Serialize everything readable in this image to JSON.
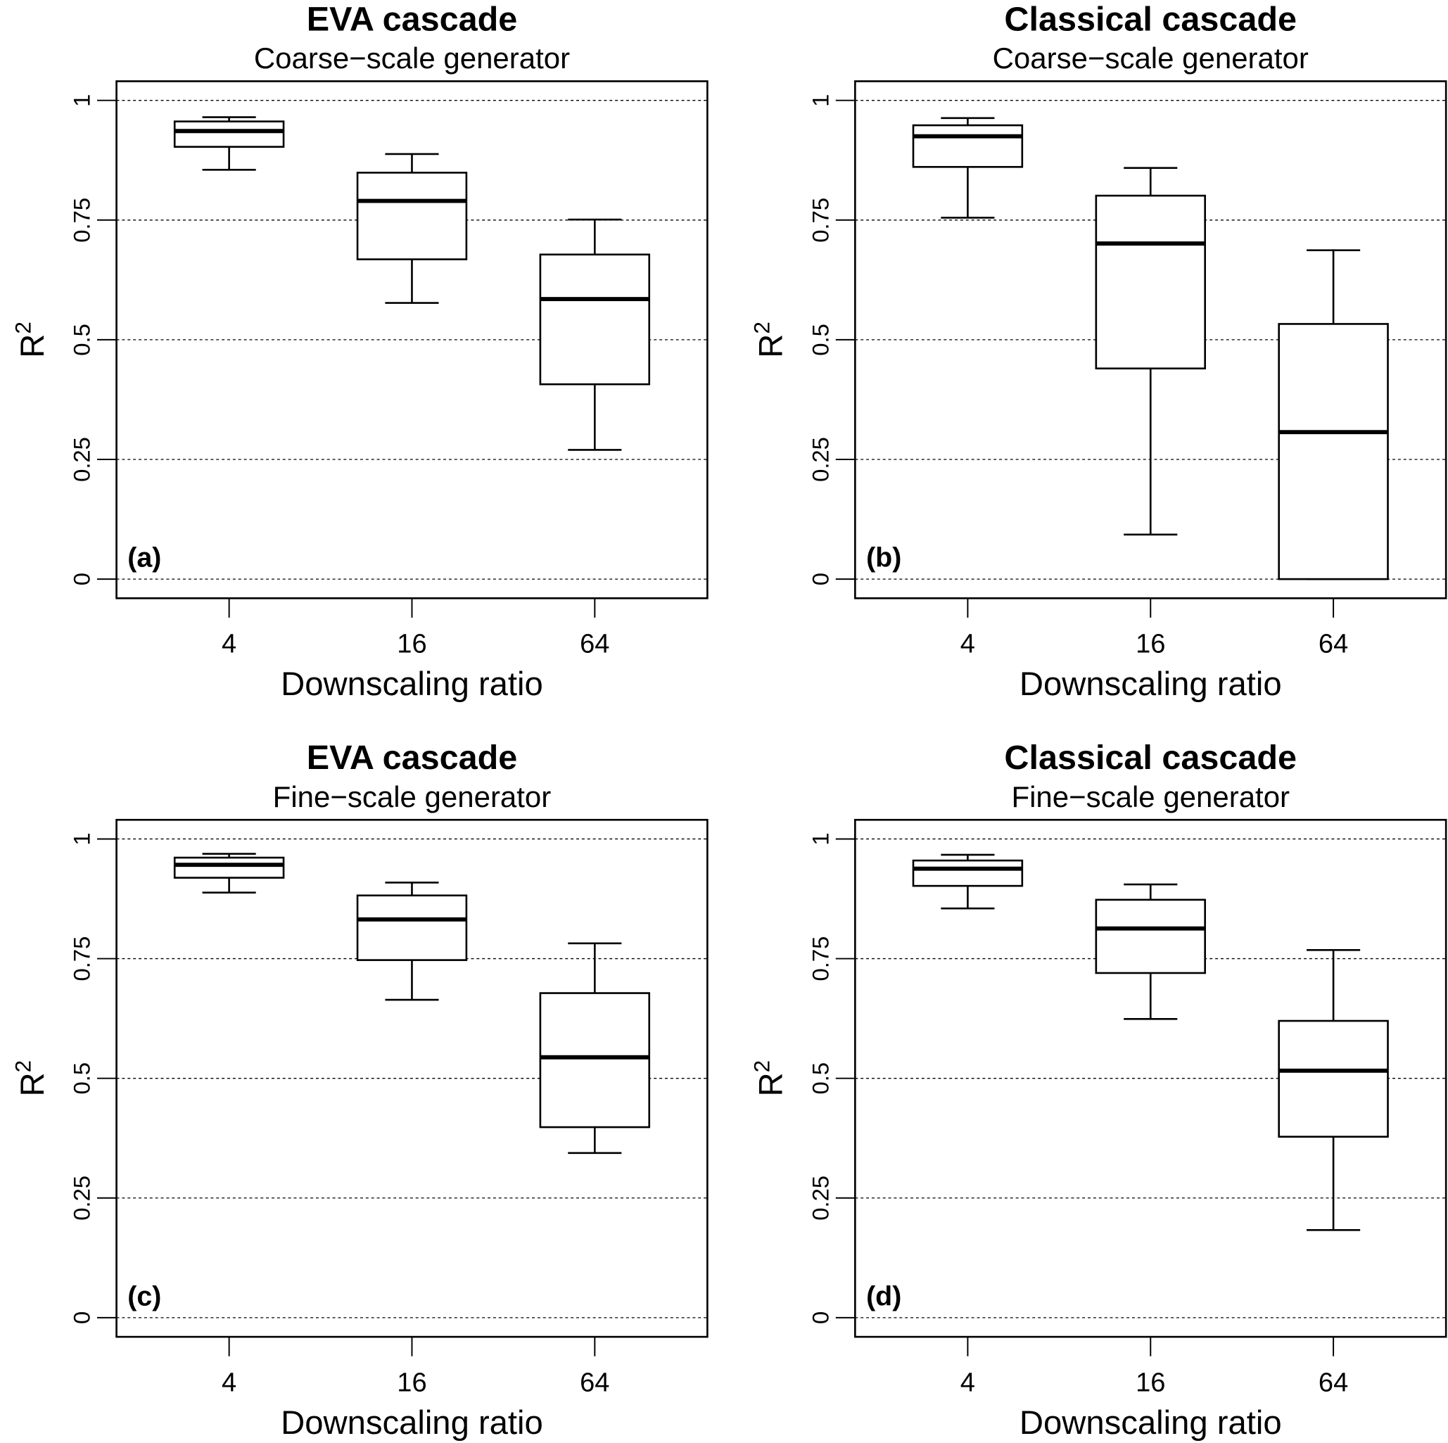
{
  "chart_data": [
    {
      "type": "box",
      "title": "EVA cascade",
      "subtitle": "Coarse−scale generator",
      "panel_label": "(a)",
      "xlabel": "Downscaling ratio",
      "ylabel": "R",
      "ylabel_superscript": "2",
      "categories": [
        "4",
        "16",
        "64"
      ],
      "yticks": [
        "0",
        "0.25",
        "0.5",
        "0.75",
        "1"
      ],
      "ylim": [
        0,
        1
      ],
      "grid": "horizontal dashed",
      "boxes": [
        {
          "whisker_low": 0.855,
          "q1": 0.903,
          "median": 0.936,
          "q3": 0.956,
          "whisker_high": 0.965
        },
        {
          "whisker_low": 0.577,
          "q1": 0.668,
          "median": 0.79,
          "q3": 0.849,
          "whisker_high": 0.888
        },
        {
          "whisker_low": 0.27,
          "q1": 0.407,
          "median": 0.585,
          "q3": 0.678,
          "whisker_high": 0.751
        }
      ]
    },
    {
      "type": "box",
      "title": "Classical cascade",
      "subtitle": "Coarse−scale generator",
      "panel_label": "(b)",
      "xlabel": "Downscaling ratio",
      "ylabel": "R",
      "ylabel_superscript": "2",
      "categories": [
        "4",
        "16",
        "64"
      ],
      "yticks": [
        "0",
        "0.25",
        "0.5",
        "0.75",
        "1"
      ],
      "ylim": [
        0,
        1
      ],
      "grid": "horizontal dashed",
      "boxes": [
        {
          "whisker_low": 0.755,
          "q1": 0.861,
          "median": 0.925,
          "q3": 0.948,
          "whisker_high": 0.963
        },
        {
          "whisker_low": 0.093,
          "q1": 0.44,
          "median": 0.701,
          "q3": 0.801,
          "whisker_high": 0.859
        },
        {
          "whisker_low": 0.0,
          "q1": 0.0,
          "median": 0.307,
          "q3": 0.533,
          "whisker_high": 0.687
        }
      ]
    },
    {
      "type": "box",
      "title": "EVA cascade",
      "subtitle": "Fine−scale generator",
      "panel_label": "(c)",
      "xlabel": "Downscaling ratio",
      "ylabel": "R",
      "ylabel_superscript": "2",
      "categories": [
        "4",
        "16",
        "64"
      ],
      "yticks": [
        "0",
        "0.25",
        "0.5",
        "0.75",
        "1"
      ],
      "ylim": [
        0,
        1
      ],
      "grid": "horizontal dashed",
      "boxes": [
        {
          "whisker_low": 0.888,
          "q1": 0.919,
          "median": 0.946,
          "q3": 0.961,
          "whisker_high": 0.969
        },
        {
          "whisker_low": 0.664,
          "q1": 0.747,
          "median": 0.832,
          "q3": 0.882,
          "whisker_high": 0.909
        },
        {
          "whisker_low": 0.344,
          "q1": 0.398,
          "median": 0.544,
          "q3": 0.678,
          "whisker_high": 0.782
        }
      ]
    },
    {
      "type": "box",
      "title": "Classical cascade",
      "subtitle": "Fine−scale generator",
      "panel_label": "(d)",
      "xlabel": "Downscaling ratio",
      "ylabel": "R",
      "ylabel_superscript": "2",
      "categories": [
        "4",
        "16",
        "64"
      ],
      "yticks": [
        "0",
        "0.25",
        "0.5",
        "0.75",
        "1"
      ],
      "ylim": [
        0,
        1
      ],
      "grid": "horizontal dashed",
      "boxes": [
        {
          "whisker_low": 0.855,
          "q1": 0.902,
          "median": 0.938,
          "q3": 0.955,
          "whisker_high": 0.967
        },
        {
          "whisker_low": 0.624,
          "q1": 0.72,
          "median": 0.813,
          "q3": 0.873,
          "whisker_high": 0.905
        },
        {
          "whisker_low": 0.183,
          "q1": 0.378,
          "median": 0.516,
          "q3": 0.62,
          "whisker_high": 0.768
        }
      ]
    }
  ]
}
